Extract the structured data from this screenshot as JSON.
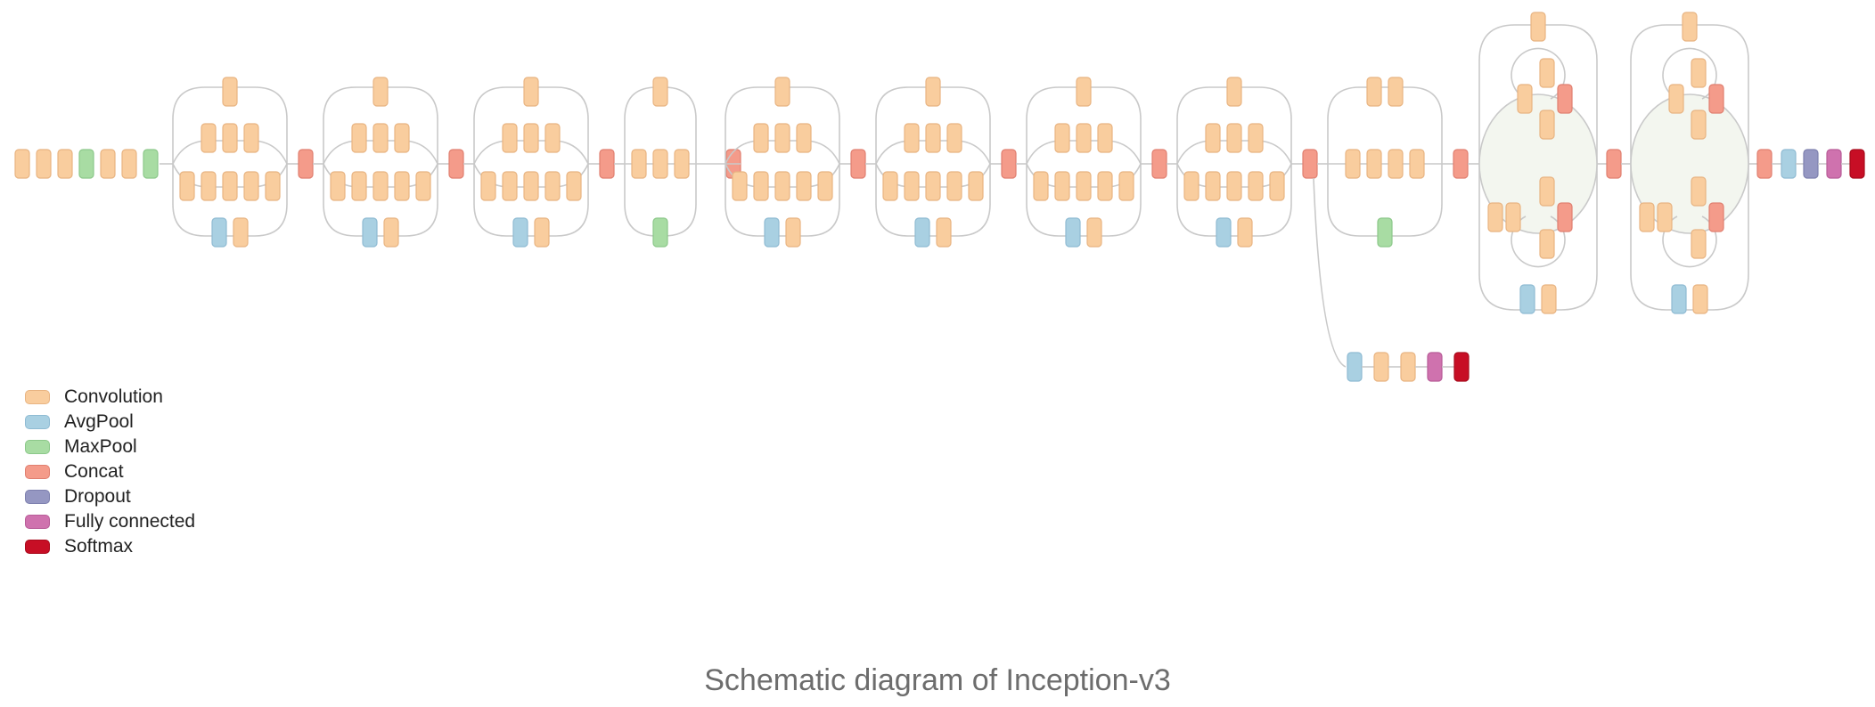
{
  "caption": "Schematic diagram of Inception-v3",
  "legend": [
    {
      "type": "conv",
      "label": "Convolution",
      "color": "#F9CD9E",
      "stroke": "#E8B482"
    },
    {
      "type": "avgpool",
      "label": "AvgPool",
      "color": "#A9D0E2",
      "stroke": "#8FBBD3"
    },
    {
      "type": "maxpool",
      "label": "MaxPool",
      "color": "#A8DCA3",
      "stroke": "#8CC88A"
    },
    {
      "type": "concat",
      "label": "Concat",
      "color": "#F49B8A",
      "stroke": "#E07F70"
    },
    {
      "type": "dropout",
      "label": "Dropout",
      "color": "#9597C2",
      "stroke": "#7D80AE"
    },
    {
      "type": "fc",
      "label": "Fully connected",
      "color": "#CF72AE",
      "stroke": "#B85C98"
    },
    {
      "type": "softmax",
      "label": "Softmax",
      "color": "#C70E25",
      "stroke": "#A80A1C"
    }
  ],
  "stem": [
    "conv",
    "conv",
    "conv",
    "maxpool",
    "conv",
    "conv",
    "maxpool"
  ],
  "modules": [
    {
      "kind": "A",
      "rows": [
        [
          "conv"
        ],
        [
          "conv",
          "conv",
          "conv"
        ],
        [
          "conv",
          "conv",
          "conv",
          "conv",
          "conv"
        ],
        [
          "avgpool",
          "conv"
        ]
      ]
    },
    {
      "kind": "A",
      "rows": [
        [
          "conv"
        ],
        [
          "conv",
          "conv",
          "conv"
        ],
        [
          "conv",
          "conv",
          "conv",
          "conv",
          "conv"
        ],
        [
          "avgpool",
          "conv"
        ]
      ]
    },
    {
      "kind": "A",
      "rows": [
        [
          "conv"
        ],
        [
          "conv",
          "conv",
          "conv"
        ],
        [
          "conv",
          "conv",
          "conv",
          "conv",
          "conv"
        ],
        [
          "avgpool",
          "conv"
        ]
      ]
    },
    {
      "kind": "R",
      "rows": [
        [
          "conv"
        ],
        [
          "conv",
          "conv",
          "conv"
        ],
        [
          "maxpool"
        ]
      ]
    },
    {
      "kind": "A",
      "rows": [
        [
          "conv"
        ],
        [
          "conv",
          "conv",
          "conv"
        ],
        [
          "conv",
          "conv",
          "conv",
          "conv",
          "conv"
        ],
        [
          "avgpool",
          "conv"
        ]
      ]
    },
    {
      "kind": "A",
      "rows": [
        [
          "conv"
        ],
        [
          "conv",
          "conv",
          "conv"
        ],
        [
          "conv",
          "conv",
          "conv",
          "conv",
          "conv"
        ],
        [
          "avgpool",
          "conv"
        ]
      ]
    },
    {
      "kind": "A",
      "rows": [
        [
          "conv"
        ],
        [
          "conv",
          "conv",
          "conv"
        ],
        [
          "conv",
          "conv",
          "conv",
          "conv",
          "conv"
        ],
        [
          "avgpool",
          "conv"
        ]
      ]
    },
    {
      "kind": "A",
      "rows": [
        [
          "conv"
        ],
        [
          "conv",
          "conv",
          "conv"
        ],
        [
          "conv",
          "conv",
          "conv",
          "conv",
          "conv"
        ],
        [
          "avgpool",
          "conv"
        ]
      ]
    },
    {
      "kind": "R",
      "rows": [
        [
          "conv",
          "conv"
        ],
        [
          "conv",
          "conv",
          "conv",
          "conv"
        ],
        [
          "maxpool"
        ]
      ]
    },
    {
      "kind": "C"
    },
    {
      "kind": "C"
    }
  ],
  "aux_head": [
    "avgpool",
    "conv",
    "conv",
    "fc",
    "softmax"
  ],
  "final_head": [
    "concat",
    "avgpool",
    "dropout",
    "fc",
    "softmax"
  ]
}
